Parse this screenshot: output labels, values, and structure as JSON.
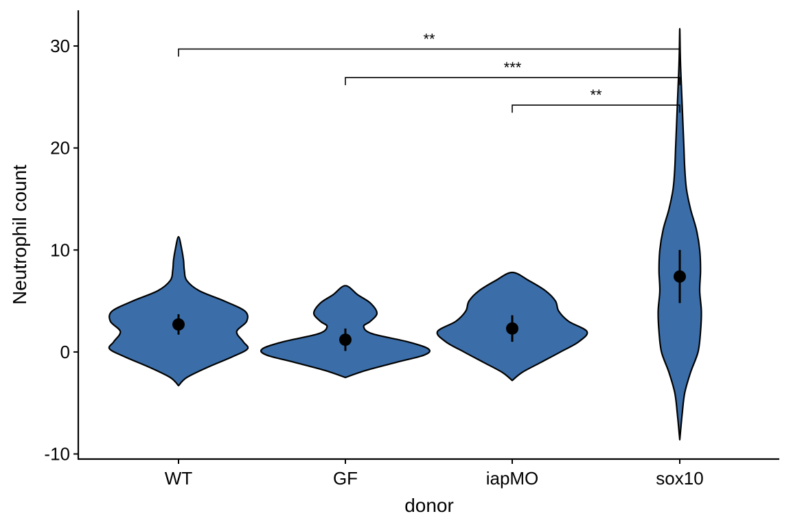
{
  "chart_data": {
    "type": "violin",
    "xlabel": "donor",
    "ylabel": "Neutrophil count",
    "ylim": [
      -10.5,
      33.5
    ],
    "yticks": [
      -10,
      0,
      10,
      20,
      30
    ],
    "ytick_labels": [
      "-10",
      "0",
      "10",
      "20",
      "30"
    ],
    "fill_color": "#3B6EA8",
    "categories": [
      "WT",
      "GF",
      "iapMO",
      "sox10"
    ],
    "groups": [
      {
        "name": "WT",
        "mean": 2.7,
        "ci": [
          1.7,
          3.7
        ],
        "density": [
          [
            -3.3,
            0.0
          ],
          [
            -2.5,
            0.1
          ],
          [
            -1.5,
            0.35
          ],
          [
            -0.5,
            0.64
          ],
          [
            0.3,
            0.83
          ],
          [
            1.0,
            0.78
          ],
          [
            2.0,
            0.7
          ],
          [
            3.0,
            0.82
          ],
          [
            4.0,
            0.8
          ],
          [
            5.0,
            0.55
          ],
          [
            6.0,
            0.25
          ],
          [
            7.0,
            0.1
          ],
          [
            8.0,
            0.07
          ],
          [
            9.0,
            0.06
          ],
          [
            10.0,
            0.04
          ],
          [
            11.3,
            0.0
          ]
        ]
      },
      {
        "name": "GF",
        "mean": 1.2,
        "ci": [
          0.1,
          2.3
        ],
        "density": [
          [
            -2.5,
            0.0
          ],
          [
            -1.8,
            0.25
          ],
          [
            -1.0,
            0.62
          ],
          [
            -0.3,
            0.95
          ],
          [
            0.3,
            1.0
          ],
          [
            1.0,
            0.75
          ],
          [
            1.8,
            0.32
          ],
          [
            2.5,
            0.22
          ],
          [
            3.0,
            0.3
          ],
          [
            3.8,
            0.38
          ],
          [
            4.8,
            0.3
          ],
          [
            5.6,
            0.15
          ],
          [
            6.5,
            0.0
          ]
        ]
      },
      {
        "name": "iapMO",
        "mean": 2.3,
        "ci": [
          1.0,
          3.6
        ],
        "density": [
          [
            -2.8,
            0.0
          ],
          [
            -2.0,
            0.12
          ],
          [
            -1.0,
            0.35
          ],
          [
            0.0,
            0.58
          ],
          [
            1.0,
            0.8
          ],
          [
            2.0,
            0.9
          ],
          [
            3.0,
            0.68
          ],
          [
            4.0,
            0.56
          ],
          [
            5.0,
            0.52
          ],
          [
            6.0,
            0.4
          ],
          [
            7.0,
            0.2
          ],
          [
            7.8,
            0.0
          ]
        ]
      },
      {
        "name": "sox10",
        "mean": 7.4,
        "ci": [
          4.8,
          10.0
        ],
        "density": [
          [
            -8.6,
            0.0
          ],
          [
            -6.0,
            0.03
          ],
          [
            -4.0,
            0.06
          ],
          [
            -2.0,
            0.13
          ],
          [
            0.0,
            0.22
          ],
          [
            2.0,
            0.25
          ],
          [
            4.0,
            0.26
          ],
          [
            6.0,
            0.24
          ],
          [
            8.0,
            0.25
          ],
          [
            10.0,
            0.24
          ],
          [
            12.0,
            0.2
          ],
          [
            14.0,
            0.13
          ],
          [
            16.0,
            0.08
          ],
          [
            18.0,
            0.06
          ],
          [
            20.0,
            0.05
          ],
          [
            22.0,
            0.04
          ],
          [
            24.0,
            0.03
          ],
          [
            26.0,
            0.02
          ],
          [
            28.0,
            0.01
          ],
          [
            29.5,
            0.005
          ],
          [
            31.7,
            0.0
          ]
        ]
      }
    ],
    "comparisons": [
      {
        "from": "WT",
        "to": "sox10",
        "label": "**",
        "y": 29.7
      },
      {
        "from": "GF",
        "to": "sox10",
        "label": "***",
        "y": 26.9
      },
      {
        "from": "iapMO",
        "to": "sox10",
        "label": "**",
        "y": 24.2
      }
    ]
  }
}
